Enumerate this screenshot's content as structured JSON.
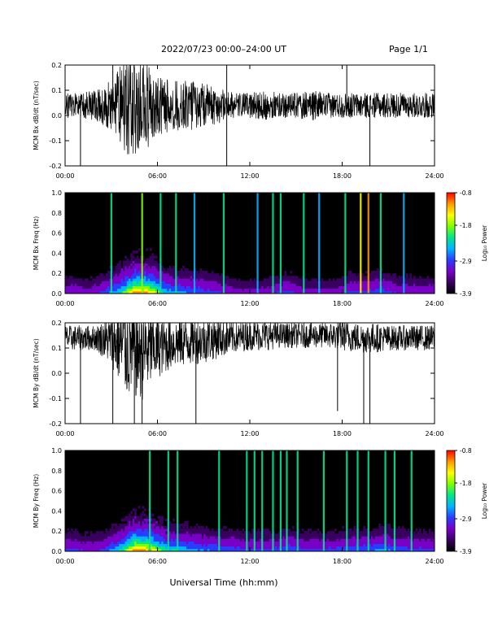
{
  "header": {
    "title": "2022/07/23  00:00–24:00 UT",
    "page": "Page 1/1"
  },
  "footer": {
    "xlabel": "Universal Time (hh:mm)"
  },
  "colors": {
    "trace": "#000000",
    "spectrogram_background": "#000000",
    "colormap": [
      "#000000",
      "#3a0060",
      "#7a00c8",
      "#2a3cff",
      "#00b4ff",
      "#00e68c",
      "#7fff00",
      "#ffff00",
      "#ff9900",
      "#ff0000"
    ]
  },
  "chart_data": [
    {
      "type": "line",
      "ylabel": "MCM Bx dB/dt (nT/sec)",
      "xlim": [
        0,
        24
      ],
      "ylim": [
        -0.2,
        0.2
      ],
      "xticks": [
        "00:00",
        "06:00",
        "12:00",
        "18:00",
        "24:00"
      ],
      "yticks": [
        "-0.2",
        "-0.1",
        "0.0",
        "0.1",
        "0.2"
      ],
      "series": [
        {
          "x_hours": [
            0,
            1,
            2,
            3,
            4,
            5,
            6,
            7,
            8,
            9,
            10,
            11,
            12,
            13,
            14,
            15,
            16,
            17,
            18,
            19,
            20,
            21,
            22,
            23,
            24
          ],
          "baseline": [
            0.04,
            0.04,
            0.04,
            0.04,
            0.04,
            0.04,
            0.04,
            0.04,
            0.04,
            0.04,
            0.04,
            0.04,
            0.04,
            0.04,
            0.04,
            0.04,
            0.04,
            0.04,
            0.04,
            0.04,
            0.04,
            0.04,
            0.04,
            0.04,
            0.04
          ],
          "envelope": [
            0.05,
            0.05,
            0.06,
            0.1,
            0.2,
            0.2,
            0.12,
            0.1,
            0.1,
            0.09,
            0.07,
            0.05,
            0.05,
            0.06,
            0.05,
            0.05,
            0.06,
            0.05,
            0.05,
            0.05,
            0.05,
            0.05,
            0.05,
            0.05,
            0.05
          ],
          "spikes": [
            [
              1.0,
              -0.2
            ],
            [
              3.1,
              0.2
            ],
            [
              10.5,
              0.2
            ],
            [
              10.5,
              -0.2
            ],
            [
              18.3,
              0.2
            ],
            [
              19.8,
              -0.2
            ]
          ]
        }
      ]
    },
    {
      "type": "heatmap",
      "ylabel": "MCM Bx Freq (Hz)",
      "xlim": [
        0,
        24
      ],
      "ylim": [
        0,
        1.0
      ],
      "xticks": [
        "00:00",
        "06:00",
        "12:00",
        "18:00",
        "24:00"
      ],
      "yticks": [
        "0.0",
        "0.2",
        "0.4",
        "0.6",
        "0.8",
        "1.0"
      ],
      "colorbar": {
        "label": "Log₁₀ Power",
        "range": [
          -3.9,
          -0.8
        ],
        "ticks": [
          "-0.8",
          "-1.8",
          "-2.9",
          "-3.9"
        ]
      },
      "hour_activity": [
        0.25,
        0.2,
        0.3,
        0.5,
        0.9,
        0.8,
        0.45,
        0.4,
        0.35,
        0.3,
        0.25,
        0.2,
        0.2,
        0.25,
        0.3,
        0.2,
        0.2,
        0.2,
        0.3,
        0.3,
        0.35,
        0.25,
        0.25,
        0.25
      ],
      "vertical_lines": [
        [
          3.0,
          0.5
        ],
        [
          5.0,
          0.7
        ],
        [
          6.2,
          0.5
        ],
        [
          7.2,
          0.5
        ],
        [
          8.4,
          0.45
        ],
        [
          10.3,
          0.55
        ],
        [
          12.5,
          0.45
        ],
        [
          13.5,
          0.5
        ],
        [
          14.0,
          0.55
        ],
        [
          15.5,
          0.5
        ],
        [
          16.5,
          0.45
        ],
        [
          18.2,
          0.5
        ],
        [
          19.2,
          0.8
        ],
        [
          19.7,
          0.9
        ],
        [
          20.5,
          0.5
        ],
        [
          22.0,
          0.45
        ]
      ]
    },
    {
      "type": "line",
      "ylabel": "MCM By dB/dt (nT/sec)",
      "xlim": [
        0,
        24
      ],
      "ylim": [
        -0.2,
        0.2
      ],
      "xticks": [
        "00:00",
        "06:00",
        "12:00",
        "18:00",
        "24:00"
      ],
      "yticks": [
        "-0.2",
        "-0.1",
        "0.0",
        "0.1",
        "0.2"
      ],
      "series": [
        {
          "x_hours": [
            0,
            1,
            2,
            3,
            4,
            5,
            6,
            7,
            8,
            9,
            10,
            11,
            12,
            13,
            14,
            15,
            16,
            17,
            18,
            19,
            20,
            21,
            22,
            23,
            24
          ],
          "baseline": [
            0.14,
            0.14,
            0.14,
            0.13,
            0.1,
            0.09,
            0.1,
            0.12,
            0.13,
            0.13,
            0.14,
            0.14,
            0.15,
            0.15,
            0.15,
            0.15,
            0.15,
            0.15,
            0.15,
            0.14,
            0.14,
            0.14,
            0.14,
            0.14,
            0.14
          ],
          "envelope": [
            0.05,
            0.05,
            0.05,
            0.1,
            0.2,
            0.2,
            0.12,
            0.1,
            0.1,
            0.09,
            0.08,
            0.06,
            0.06,
            0.06,
            0.05,
            0.05,
            0.05,
            0.05,
            0.06,
            0.06,
            0.06,
            0.05,
            0.05,
            0.05,
            0.05
          ],
          "spikes": [
            [
              1.0,
              -0.2
            ],
            [
              3.1,
              -0.2
            ],
            [
              4.5,
              -0.2
            ],
            [
              5.0,
              -0.2
            ],
            [
              8.5,
              -0.2
            ],
            [
              10.5,
              0.2
            ],
            [
              17.7,
              -0.15
            ],
            [
              19.4,
              -0.2
            ],
            [
              19.8,
              -0.2
            ]
          ]
        }
      ]
    },
    {
      "type": "heatmap",
      "ylabel": "MCM By Freq (Hz)",
      "xlim": [
        0,
        24
      ],
      "ylim": [
        0,
        1.0
      ],
      "xticks": [
        "00:00",
        "06:00",
        "12:00",
        "18:00",
        "24:00"
      ],
      "yticks": [
        "0.0",
        "0.2",
        "0.4",
        "0.6",
        "0.8",
        "1.0"
      ],
      "colorbar": {
        "label": "Log₁₀ Power",
        "range": [
          -3.9,
          -0.8
        ],
        "ticks": [
          "-0.8",
          "-1.8",
          "-2.9",
          "-3.9"
        ]
      },
      "hour_activity": [
        0.3,
        0.25,
        0.3,
        0.5,
        0.9,
        0.8,
        0.5,
        0.45,
        0.4,
        0.35,
        0.35,
        0.3,
        0.3,
        0.3,
        0.35,
        0.3,
        0.3,
        0.3,
        0.35,
        0.35,
        0.4,
        0.35,
        0.3,
        0.3
      ],
      "vertical_lines": [
        [
          5.5,
          0.55
        ],
        [
          6.7,
          0.6
        ],
        [
          7.3,
          0.55
        ],
        [
          10.0,
          0.55
        ],
        [
          11.8,
          0.6
        ],
        [
          12.3,
          0.6
        ],
        [
          12.8,
          0.55
        ],
        [
          13.5,
          0.55
        ],
        [
          14.0,
          0.6
        ],
        [
          14.4,
          0.55
        ],
        [
          15.1,
          0.55
        ],
        [
          16.8,
          0.5
        ],
        [
          18.3,
          0.55
        ],
        [
          19.0,
          0.5
        ],
        [
          19.7,
          0.55
        ],
        [
          20.8,
          0.55
        ],
        [
          21.4,
          0.55
        ],
        [
          22.5,
          0.5
        ]
      ]
    }
  ]
}
